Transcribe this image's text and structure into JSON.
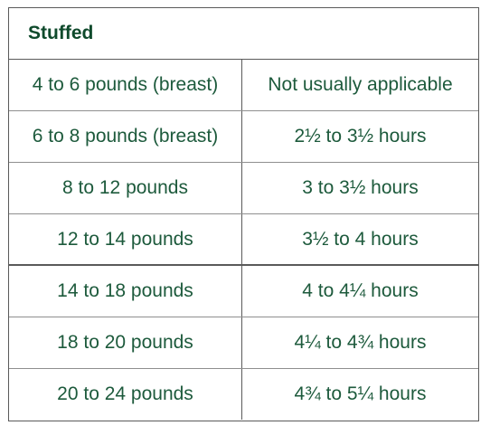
{
  "table": {
    "title": "Stuffed",
    "rows": [
      {
        "weight": "4 to 6 pounds (breast)",
        "time": "Not usually applicable"
      },
      {
        "weight": "6 to 8 pounds (breast)",
        "time": "2½ to 3½ hours"
      },
      {
        "weight": "8 to 12 pounds",
        "time": "3 to 3½ hours"
      },
      {
        "weight": "12 to 14 pounds",
        "time": "3½ to 4 hours"
      },
      {
        "weight": "14 to 18 pounds",
        "time": "4 to 4¼ hours"
      },
      {
        "weight": "18 to 20 pounds",
        "time": "4¼ to 4¾ hours"
      },
      {
        "weight": "20 to 24 pounds",
        "time": "4¾ to 5¼ hours"
      }
    ]
  }
}
